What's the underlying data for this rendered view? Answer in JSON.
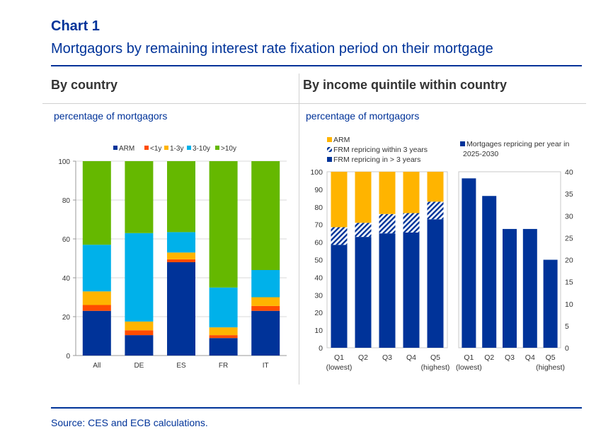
{
  "header": {
    "chart_number": "Chart 1",
    "title": "Mortgagors by remaining interest rate fixation period on their mortgage"
  },
  "panels": {
    "left_title": "By country",
    "right_title": "By income quintile within country",
    "left_unit": "percentage of mortgagors",
    "right_unit": "percentage of mortgagors"
  },
  "footer": {
    "source": "Source: CES and ECB calculations."
  },
  "colors": {
    "arm": "#003399",
    "lt1y": "#ff4b00",
    "y1_3": "#ffb400",
    "y3_10": "#00b1ea",
    "gt10y": "#65b800",
    "orange": "#ffb400",
    "dark_blue": "#003399"
  },
  "chart_data": [
    {
      "type": "bar",
      "stacked": true,
      "categories": [
        "All",
        "DE",
        "ES",
        "FR",
        "IT"
      ],
      "series": [
        {
          "name": "ARM",
          "color": "#003399",
          "values": [
            23,
            10.5,
            48,
            9,
            23
          ]
        },
        {
          "name": "<1y",
          "color": "#ff4b00",
          "values": [
            3,
            2.5,
            1.5,
            1.5,
            2.5
          ]
        },
        {
          "name": "1-3y",
          "color": "#ffb400",
          "values": [
            7,
            4.5,
            3.5,
            4,
            4.5
          ]
        },
        {
          "name": "3-10y",
          "color": "#00b1ea",
          "values": [
            24,
            45.5,
            10.5,
            20.5,
            14
          ]
        },
        {
          "name": ">10y",
          "color": "#65b800",
          "values": [
            43,
            37,
            36.5,
            65,
            56
          ]
        }
      ],
      "ylim": [
        0,
        100
      ],
      "yticks": [
        "0",
        "20",
        "40",
        "60",
        "80",
        "100"
      ],
      "grid": true,
      "legend": "top"
    },
    {
      "type": "bar",
      "stacked": true,
      "categories": [
        "Q1",
        "Q2",
        "Q3",
        "Q4",
        "Q5"
      ],
      "category_sublabels": [
        "(lowest)",
        "",
        "",
        "",
        "(highest)"
      ],
      "series": [
        {
          "name": "FRM repricing in > 3 years",
          "color": "#003399",
          "values": [
            58.5,
            63,
            65,
            65.5,
            73
          ]
        },
        {
          "name": "FRM repricing within 3 years",
          "color": "#003399",
          "pattern": "hatched",
          "values": [
            10,
            8,
            11,
            11,
            10
          ]
        },
        {
          "name": "ARM",
          "color": "#ffb400",
          "values": [
            31.5,
            29,
            24,
            23.5,
            17
          ]
        }
      ],
      "ylim": [
        0,
        100
      ],
      "yticks": [
        "0",
        "10",
        "20",
        "30",
        "40",
        "50",
        "60",
        "70",
        "80",
        "90",
        "100"
      ],
      "grid": false,
      "legend": "top"
    },
    {
      "type": "bar",
      "categories": [
        "Q1",
        "Q2",
        "Q3",
        "Q4",
        "Q5"
      ],
      "category_sublabels": [
        "(lowest)",
        "",
        "",
        "",
        "(highest)"
      ],
      "series": [
        {
          "name": "Mortgages repricing per year in 2025-2030",
          "color": "#003399",
          "values": [
            38.5,
            34.5,
            27,
            27,
            20
          ]
        }
      ],
      "ylim": [
        0,
        40
      ],
      "yticks": [
        "0",
        "5",
        "10",
        "15",
        "20",
        "25",
        "30",
        "35",
        "40"
      ],
      "grid": false,
      "legend": "top",
      "axis_side": "right"
    }
  ]
}
